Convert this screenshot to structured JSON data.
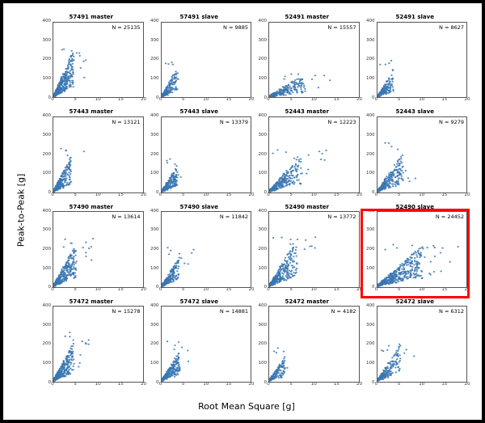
{
  "figure": {
    "xlabel": "Root Mean Square [g]",
    "ylabel": "Peak-to-Peak [g]",
    "xlabel_fontsize": 11,
    "ylabel_fontsize": 11,
    "background_color": "#ffffff",
    "frame_border_color": "#000000",
    "frame_border_width": 4,
    "layout": {
      "rows": 4,
      "cols": 4
    },
    "xlim": [
      0,
      20
    ],
    "ylim": [
      0,
      400
    ],
    "xticks": [
      0,
      5,
      10,
      15,
      20
    ],
    "yticks": [
      0,
      100,
      200,
      300,
      400
    ],
    "tick_fontsize": 5.5,
    "title_fontsize": 7,
    "title_fontweight": "bold",
    "anno_fontsize": 6.5,
    "marker_color": "#3a77b2",
    "marker_opacity": 0.85,
    "marker_radius": 1.1,
    "highlight_border_color": "#ff0000",
    "highlight_border_width": 3
  },
  "panels": [
    {
      "id": "57491-master",
      "title": "57491 master",
      "N": 25135,
      "spread": {
        "x_max": 8,
        "y_slope": 43,
        "y_max": 255,
        "density": 420,
        "tail": 0.05,
        "seed": 1
      },
      "highlight": false
    },
    {
      "id": "57491-slave",
      "title": "57491 slave",
      "N": 9885,
      "spread": {
        "x_max": 6,
        "y_slope": 35,
        "y_max": 200,
        "density": 220,
        "tail": 0.03,
        "seed": 2
      },
      "highlight": false
    },
    {
      "id": "52491-master",
      "title": "52491 master",
      "N": 15557,
      "spread": {
        "x_max": 14,
        "y_slope": 12,
        "y_max": 120,
        "density": 260,
        "tail": 0.1,
        "seed": 3
      },
      "highlight": false
    },
    {
      "id": "52491-slave",
      "title": "52491 slave",
      "N": 8627,
      "spread": {
        "x_max": 6,
        "y_slope": 32,
        "y_max": 195,
        "density": 200,
        "tail": 0.03,
        "seed": 4
      },
      "highlight": false
    },
    {
      "id": "57443-master",
      "title": "57443 master",
      "N": 13121,
      "spread": {
        "x_max": 7,
        "y_slope": 36,
        "y_max": 225,
        "density": 280,
        "tail": 0.04,
        "seed": 5
      },
      "highlight": false
    },
    {
      "id": "57443-slave",
      "title": "57443 slave",
      "N": 13379,
      "spread": {
        "x_max": 6,
        "y_slope": 30,
        "y_max": 180,
        "density": 250,
        "tail": 0.03,
        "seed": 6
      },
      "highlight": false
    },
    {
      "id": "52443-master",
      "title": "52443 master",
      "N": 12223,
      "spread": {
        "x_max": 13,
        "y_slope": 22,
        "y_max": 225,
        "density": 300,
        "tail": 0.08,
        "seed": 7
      },
      "highlight": false
    },
    {
      "id": "52443-slave",
      "title": "52443 slave",
      "N": 9279,
      "spread": {
        "x_max": 10,
        "y_slope": 28,
        "y_max": 270,
        "density": 260,
        "tail": 0.06,
        "seed": 8
      },
      "highlight": false
    },
    {
      "id": "57490-master",
      "title": "57490 master",
      "N": 13614,
      "spread": {
        "x_max": 9,
        "y_slope": 35,
        "y_max": 260,
        "density": 360,
        "tail": 0.06,
        "seed": 9
      },
      "highlight": false
    },
    {
      "id": "57490-slave",
      "title": "57490 slave",
      "N": 11842,
      "spread": {
        "x_max": 7,
        "y_slope": 30,
        "y_max": 205,
        "density": 260,
        "tail": 0.04,
        "seed": 10
      },
      "highlight": false
    },
    {
      "id": "52490-master",
      "title": "52490 master",
      "N": 13772,
      "spread": {
        "x_max": 11,
        "y_slope": 32,
        "y_max": 275,
        "density": 340,
        "tail": 0.07,
        "seed": 11
      },
      "highlight": false
    },
    {
      "id": "52490-slave",
      "title": "52490 slave",
      "N": 24452,
      "spread": {
        "x_max": 18,
        "y_slope": 17,
        "y_max": 230,
        "density": 520,
        "tail": 0.14,
        "seed": 12
      },
      "highlight": true
    },
    {
      "id": "57472-master",
      "title": "57472 master",
      "N": 15278,
      "spread": {
        "x_max": 8,
        "y_slope": 35,
        "y_max": 250,
        "density": 330,
        "tail": 0.05,
        "seed": 13
      },
      "highlight": false
    },
    {
      "id": "57472-slave",
      "title": "57472 slave",
      "N": 14881,
      "spread": {
        "x_max": 7,
        "y_slope": 30,
        "y_max": 210,
        "density": 280,
        "tail": 0.04,
        "seed": 14
      },
      "highlight": false
    },
    {
      "id": "52472-master",
      "title": "52472 master",
      "N": 4182,
      "spread": {
        "x_max": 6,
        "y_slope": 28,
        "y_max": 170,
        "density": 160,
        "tail": 0.03,
        "seed": 15
      },
      "highlight": false
    },
    {
      "id": "52472-slave",
      "title": "52472 slave",
      "N": 6312,
      "spread": {
        "x_max": 9,
        "y_slope": 30,
        "y_max": 200,
        "density": 220,
        "tail": 0.05,
        "seed": 16
      },
      "highlight": false
    }
  ]
}
